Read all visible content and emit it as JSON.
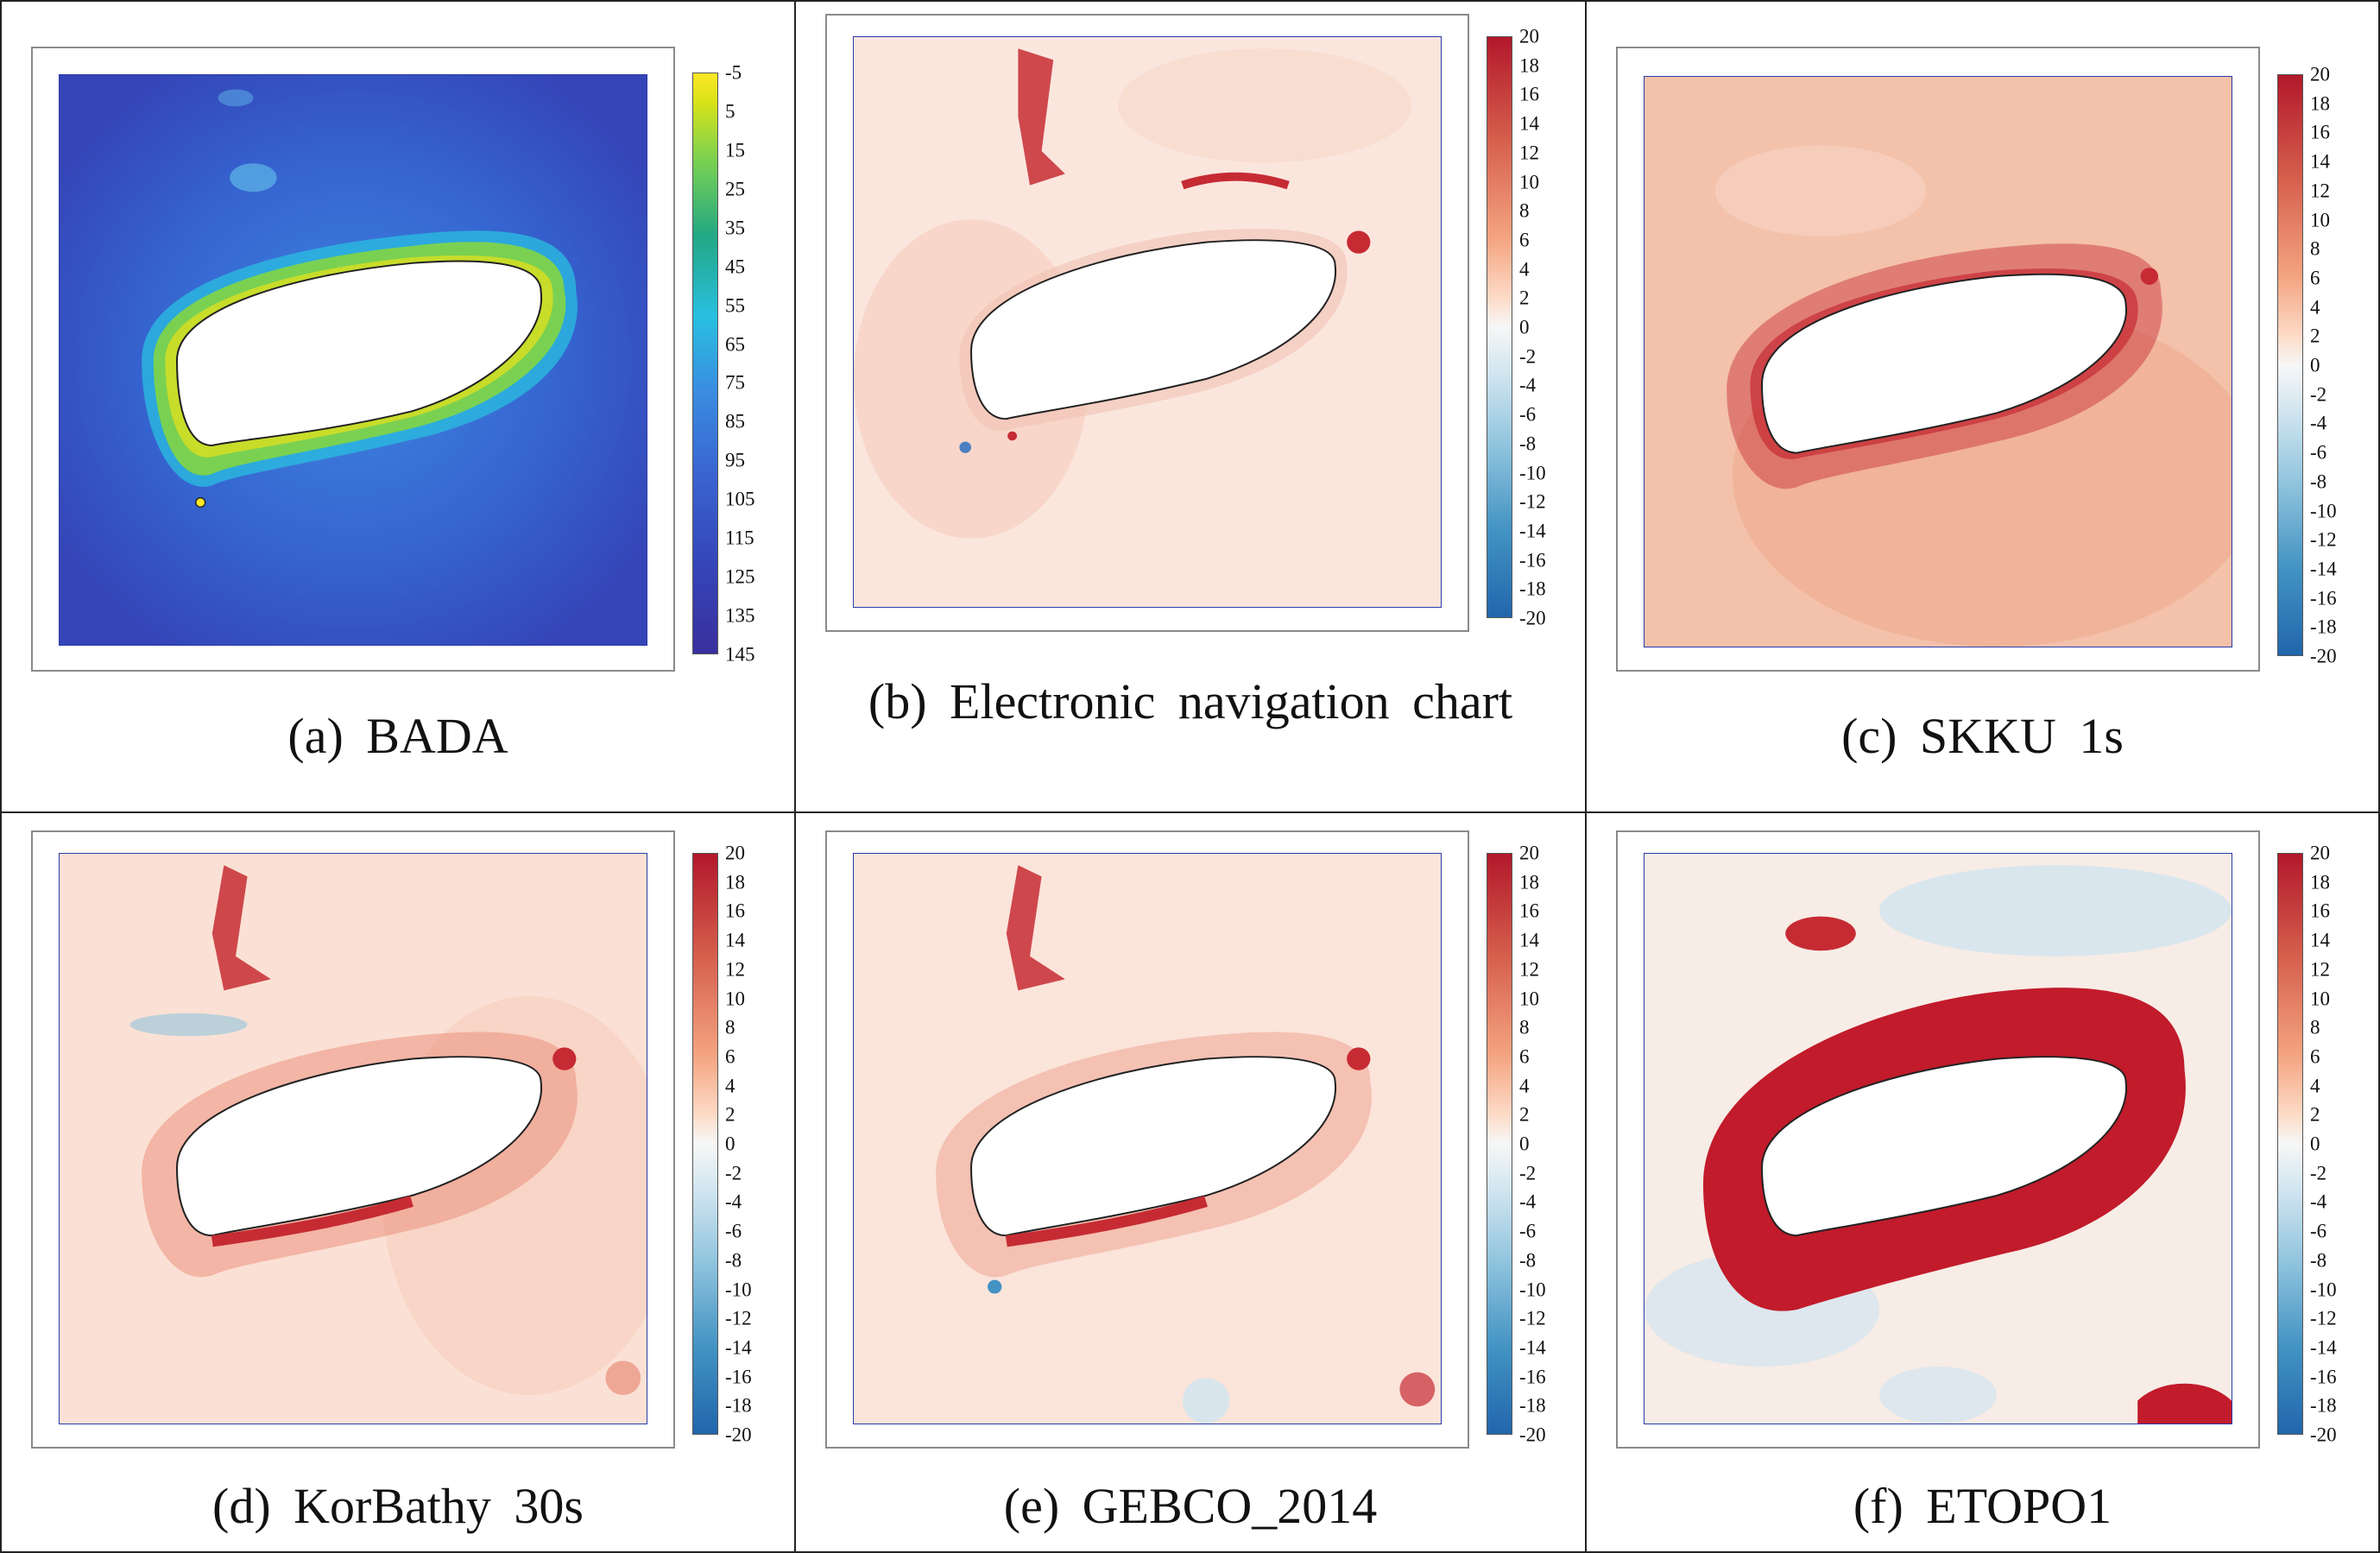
{
  "panels": [
    {
      "id": "a",
      "caption": "(a)  BADA",
      "scale": "depth",
      "ticks": [
        "-5",
        "5",
        "15",
        "25",
        "35",
        "45",
        "55",
        "65",
        "75",
        "85",
        "95",
        "105",
        "115",
        "125",
        "135",
        "145"
      ]
    },
    {
      "id": "b",
      "caption": "(b)  Electronic  navigation  chart",
      "scale": "diff",
      "ticks": [
        "20",
        "18",
        "16",
        "14",
        "12",
        "10",
        "8",
        "6",
        "4",
        "2",
        "0",
        "-2",
        "-4",
        "-6",
        "-8",
        "-10",
        "-12",
        "-14",
        "-16",
        "-18",
        "-20"
      ]
    },
    {
      "id": "c",
      "caption": "(c)  SKKU  1s",
      "scale": "diff",
      "ticks": [
        "20",
        "18",
        "16",
        "14",
        "12",
        "10",
        "8",
        "6",
        "4",
        "2",
        "0",
        "-2",
        "-4",
        "-6",
        "-8",
        "-10",
        "-12",
        "-14",
        "-16",
        "-18",
        "-20"
      ]
    },
    {
      "id": "d",
      "caption": "(d)  KorBathy  30s",
      "scale": "diff",
      "ticks": [
        "20",
        "18",
        "16",
        "14",
        "12",
        "10",
        "8",
        "6",
        "4",
        "2",
        "0",
        "-2",
        "-4",
        "-6",
        "-8",
        "-10",
        "-12",
        "-14",
        "-16",
        "-18",
        "-20"
      ]
    },
    {
      "id": "e",
      "caption": "(e)  GEBCO_2014",
      "scale": "diff",
      "ticks": [
        "20",
        "18",
        "16",
        "14",
        "12",
        "10",
        "8",
        "6",
        "4",
        "2",
        "0",
        "-2",
        "-4",
        "-6",
        "-8",
        "-10",
        "-12",
        "-14",
        "-16",
        "-18",
        "-20"
      ]
    },
    {
      "id": "f",
      "caption": "(f)  ETOPO1",
      "scale": "diff",
      "ticks": [
        "20",
        "18",
        "16",
        "14",
        "12",
        "10",
        "8",
        "6",
        "4",
        "2",
        "0",
        "-2",
        "-4",
        "-6",
        "-8",
        "-10",
        "-12",
        "-14",
        "-16",
        "-18",
        "-20"
      ]
    }
  ],
  "colors": {
    "diff_high": "#b2182b",
    "diff_mid": "#f7f7f7",
    "diff_low": "#2166ac",
    "depth_shallow": "#fde725",
    "depth_deep": "#3a2f9e",
    "map_border": "#2b3aa8"
  }
}
